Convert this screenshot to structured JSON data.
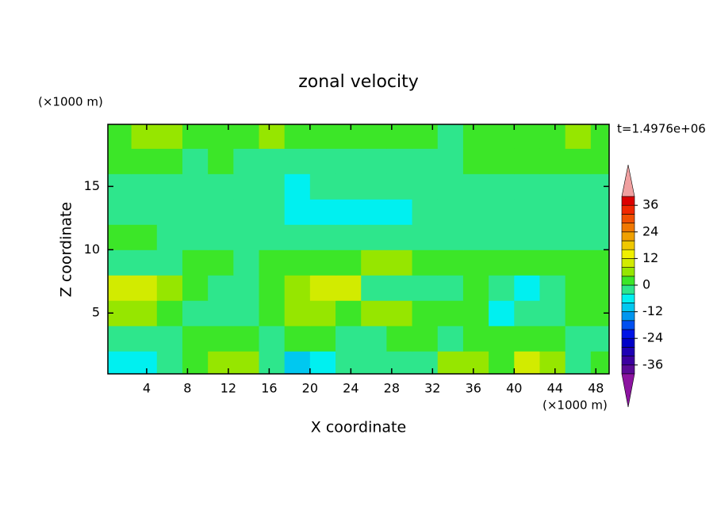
{
  "chart_data": {
    "type": "contour",
    "title": "zonal velocity",
    "x_label": "X coordinate",
    "y_label": "Z coordinate",
    "x_unit": "(×1000 m)",
    "y_unit": "(×1000 m)",
    "time_label": "t=1.4976e+06",
    "xlim": [
      0.2,
      49.3
    ],
    "ylim": [
      0.2,
      19.9
    ],
    "xticks": [
      4,
      8,
      12,
      16,
      20,
      24,
      28,
      32,
      36,
      40,
      44,
      48
    ],
    "yticks": [
      5,
      10,
      15
    ],
    "x": [
      1.25,
      3.75,
      6.25,
      8.75,
      11.25,
      13.75,
      16.25,
      18.75,
      21.25,
      23.75,
      26.25,
      28.75,
      31.25,
      33.75,
      36.25,
      38.75,
      41.25,
      43.75,
      46.25,
      48.75
    ],
    "y": [
      1,
      3,
      5,
      7,
      9,
      11,
      13,
      15,
      17,
      19
    ],
    "z": [
      [
        -6,
        -6,
        -2,
        2,
        6,
        4,
        -2,
        -9,
        -6,
        -2,
        -2,
        -2,
        -2,
        6,
        4,
        2,
        9,
        6,
        -2,
        2
      ],
      [
        -2,
        -2,
        -2,
        2,
        2,
        2,
        -2,
        2,
        2,
        -2,
        -2,
        2,
        2,
        -2,
        2,
        2,
        2,
        2,
        -2,
        -2
      ],
      [
        6,
        6,
        2,
        -2,
        -2,
        -2,
        2,
        6,
        6,
        2,
        6,
        6,
        2,
        2,
        2,
        -6,
        -4,
        -2,
        2,
        2
      ],
      [
        8,
        8,
        6,
        2,
        -2,
        -4,
        2,
        6,
        9,
        8,
        -2,
        -2,
        -2,
        -2,
        2,
        -2,
        -6,
        -4,
        2,
        2
      ],
      [
        -2,
        -2,
        -2,
        2,
        2,
        -2,
        2,
        2,
        2,
        2,
        6,
        6,
        2,
        2,
        2,
        2,
        2,
        2,
        2,
        2
      ],
      [
        2,
        2,
        -2,
        -2,
        -2,
        -2,
        -2,
        -2,
        -2,
        -2,
        -2,
        -2,
        -2,
        -2,
        -2,
        -2,
        -2,
        -2,
        -2,
        -2
      ],
      [
        -2,
        -2,
        -2,
        -2,
        -2,
        -2,
        -4,
        -6,
        -6,
        -6,
        -6,
        -6,
        -4,
        -2,
        -2,
        -2,
        -4,
        -2,
        -2,
        -2
      ],
      [
        -2,
        -2,
        -2,
        -2,
        -2,
        -2,
        -2,
        -6,
        -2,
        -2,
        -2,
        -2,
        -2,
        -2,
        -2,
        -2,
        -2,
        -2,
        -2,
        -2
      ],
      [
        2,
        2,
        2,
        -2,
        2,
        -2,
        -2,
        -2,
        -2,
        -2,
        -2,
        -2,
        -2,
        -2,
        2,
        2,
        2,
        2,
        2,
        2
      ],
      [
        2,
        6,
        6,
        2,
        2,
        2,
        6,
        2,
        2,
        2,
        2,
        2,
        2,
        -2,
        2,
        2,
        2,
        2,
        6,
        2
      ]
    ],
    "levels": [
      -40,
      -36,
      -32,
      -28,
      -24,
      -20,
      -16,
      -12,
      -8,
      -4,
      0,
      4,
      8,
      12,
      16,
      20,
      24,
      28,
      32,
      36,
      40
    ],
    "colors": [
      "#5a0a96",
      "#3c00a0",
      "#1e00b4",
      "#0000c8",
      "#0014e6",
      "#0050f0",
      "#0096f0",
      "#00c8f0",
      "#00f0f0",
      "#2ee68c",
      "#3ce628",
      "#96e600",
      "#d2eb00",
      "#f0f000",
      "#f0c800",
      "#f0a000",
      "#f07800",
      "#f05000",
      "#f02800",
      "#dc0000"
    ],
    "under_color": "#8c14a0",
    "over_color": "#f0a0a0",
    "colorbar_ticks": [
      -36,
      -24,
      -12,
      0,
      12,
      24,
      36
    ]
  }
}
